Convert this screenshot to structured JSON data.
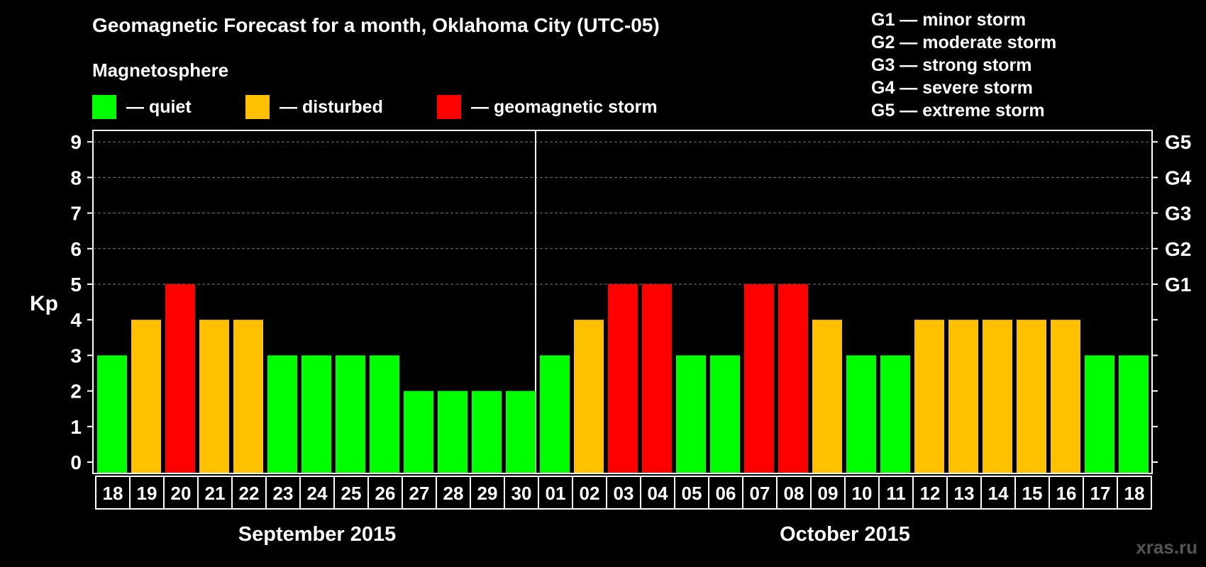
{
  "header": {
    "title": "Geomagnetic Forecast for a month, Oklahoma City (UTC-05)",
    "magnetosphere_label": "Magnetosphere"
  },
  "legend": [
    {
      "label": "— quiet",
      "color": "#00ff00"
    },
    {
      "label": "— disturbed",
      "color": "#ffc000"
    },
    {
      "label": "— geomagnetic storm",
      "color": "#ff0000"
    }
  ],
  "storm_scale": [
    "G1 — minor storm",
    "G2 — moderate storm",
    "G3 — strong storm",
    "G4 — severe storm",
    "G5 — extreme storm"
  ],
  "watermark": "xras.ru",
  "colors": {
    "quiet": "#00ff00",
    "disturbed": "#ffc000",
    "storm": "#ff0000",
    "grid": "#777777",
    "axis": "#ffffff"
  },
  "chart_data": {
    "type": "bar",
    "title": "Geomagnetic Forecast for a month, Oklahoma City (UTC-05)",
    "ylabel": "Kp",
    "ylim": [
      0,
      9
    ],
    "yticks": [
      "0",
      "1",
      "2",
      "3",
      "4",
      "5",
      "6",
      "7",
      "8",
      "9"
    ],
    "right_axis": [
      {
        "value": 5,
        "label": "G1"
      },
      {
        "value": 6,
        "label": "G2"
      },
      {
        "value": 7,
        "label": "G3"
      },
      {
        "value": 8,
        "label": "G4"
      },
      {
        "value": 9,
        "label": "G5"
      }
    ],
    "categories": [
      "18",
      "19",
      "20",
      "21",
      "22",
      "23",
      "24",
      "25",
      "26",
      "27",
      "28",
      "29",
      "30",
      "01",
      "02",
      "03",
      "04",
      "05",
      "06",
      "07",
      "08",
      "09",
      "10",
      "11",
      "12",
      "13",
      "14",
      "15",
      "16",
      "17",
      "18"
    ],
    "values": [
      3,
      4,
      5,
      4,
      4,
      3,
      3,
      3,
      3,
      2,
      2,
      2,
      2,
      3,
      4,
      5,
      5,
      3,
      3,
      5,
      5,
      4,
      3,
      3,
      4,
      4,
      4,
      4,
      4,
      3,
      3
    ],
    "months": [
      {
        "label": "September 2015",
        "start_index": 0,
        "count": 13
      },
      {
        "label": "October 2015",
        "start_index": 13,
        "count": 18
      }
    ],
    "grid": true
  }
}
